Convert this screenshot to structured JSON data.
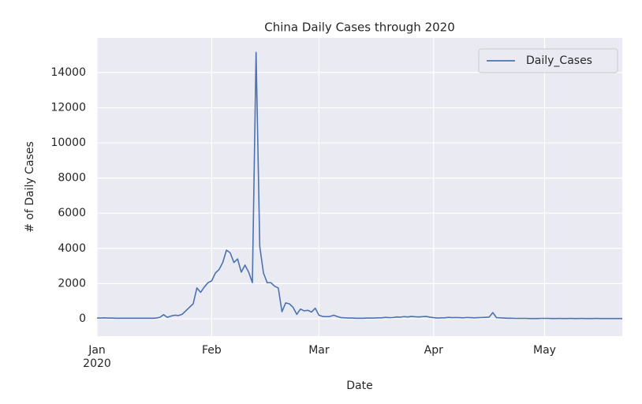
{
  "chart_data": {
    "type": "line",
    "title": "China Daily Cases through 2020",
    "x_label": "Date",
    "y_label": "# of Daily Cases",
    "x": [
      0,
      1,
      2,
      3,
      4,
      5,
      6,
      7,
      8,
      9,
      10,
      11,
      12,
      13,
      14,
      15,
      16,
      17,
      18,
      19,
      20,
      21,
      22,
      23,
      24,
      25,
      26,
      27,
      28,
      29,
      30,
      31,
      32,
      33,
      34,
      35,
      36,
      37,
      38,
      39,
      40,
      41,
      42,
      43,
      44,
      45,
      46,
      47,
      48,
      49,
      50,
      51,
      52,
      53,
      54,
      55,
      56,
      57,
      58,
      59,
      60,
      61,
      62,
      63,
      64,
      65,
      66,
      67,
      68,
      69,
      70,
      71,
      72,
      73,
      74,
      75,
      76,
      77,
      78,
      79,
      80,
      81,
      82,
      83,
      84,
      85,
      86,
      87,
      88,
      89,
      90,
      91,
      92,
      93,
      94,
      95,
      96,
      97,
      98,
      99,
      100,
      101,
      102,
      103,
      104,
      105,
      106,
      107,
      108,
      109,
      110,
      111,
      112,
      113,
      114,
      115,
      116,
      117,
      118,
      119,
      120,
      121,
      122,
      123,
      124,
      125,
      126,
      127,
      128,
      129,
      130,
      131,
      132,
      133,
      134,
      135,
      136,
      137,
      138,
      139,
      140,
      141,
      142
    ],
    "series": [
      {
        "name": "Daily_Cases",
        "color": "#4c72b0",
        "values": [
          40,
          40,
          50,
          40,
          40,
          30,
          30,
          30,
          30,
          30,
          30,
          30,
          30,
          30,
          30,
          30,
          40,
          80,
          230,
          80,
          150,
          200,
          180,
          250,
          450,
          650,
          850,
          1750,
          1500,
          1800,
          2050,
          2150,
          2600,
          2800,
          3200,
          3900,
          3750,
          3200,
          3400,
          2650,
          3050,
          2650,
          2050,
          15150,
          4100,
          2600,
          2050,
          2050,
          1850,
          1750,
          400,
          900,
          850,
          650,
          250,
          550,
          450,
          480,
          380,
          600,
          200,
          130,
          120,
          130,
          200,
          120,
          60,
          50,
          40,
          40,
          30,
          30,
          30,
          40,
          40,
          40,
          50,
          50,
          80,
          60,
          70,
          100,
          90,
          120,
          100,
          130,
          110,
          100,
          120,
          130,
          90,
          60,
          40,
          50,
          50,
          80,
          60,
          70,
          60,
          50,
          70,
          60,
          50,
          60,
          70,
          80,
          90,
          350,
          60,
          50,
          40,
          30,
          30,
          20,
          20,
          20,
          20,
          10,
          10,
          10,
          20,
          20,
          20,
          10,
          10,
          20,
          10,
          10,
          20,
          10,
          10,
          20,
          10,
          10,
          10,
          20,
          10,
          10,
          10,
          10,
          10,
          10,
          10
        ]
      }
    ],
    "xlim": [
      0,
      142
    ],
    "ylim": [
      -990,
      15970
    ],
    "xticks": [
      {
        "value": 0,
        "label": "Jan\n2020"
      },
      {
        "value": 31,
        "label": "Feb"
      },
      {
        "value": 60,
        "label": "Mar"
      },
      {
        "value": 91,
        "label": "Apr"
      },
      {
        "value": 121,
        "label": "May"
      }
    ],
    "yticks": [
      0,
      2000,
      4000,
      6000,
      8000,
      10000,
      12000,
      14000
    ],
    "grid": true,
    "legend": "upper right"
  }
}
